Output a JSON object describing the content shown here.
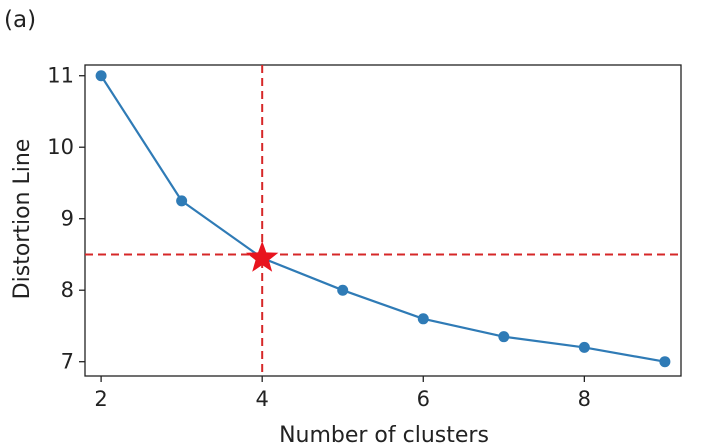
{
  "panel_label": "(a)",
  "chart_data": {
    "type": "line",
    "xlabel": "Number of clusters",
    "ylabel": "Distortion Line",
    "x": [
      2,
      3,
      4,
      5,
      6,
      7,
      8,
      9
    ],
    "series": [
      {
        "values": [
          11.0,
          9.25,
          8.45,
          8.0,
          7.6,
          7.35,
          7.2,
          7.0
        ],
        "color": "#2f7bb6"
      }
    ],
    "xlim": [
      1.8,
      9.2
    ],
    "ylim": [
      6.8,
      11.15
    ],
    "xticks": [
      2,
      4,
      6,
      8
    ],
    "yticks": [
      7,
      8,
      9,
      10,
      11
    ],
    "grid": false,
    "reference_lines": {
      "x": 4,
      "y": 8.5,
      "color": "#d62728",
      "style": "dashed"
    },
    "highlight": {
      "x": 4,
      "y": 8.45,
      "marker": "star",
      "color": "#e8141e"
    }
  }
}
